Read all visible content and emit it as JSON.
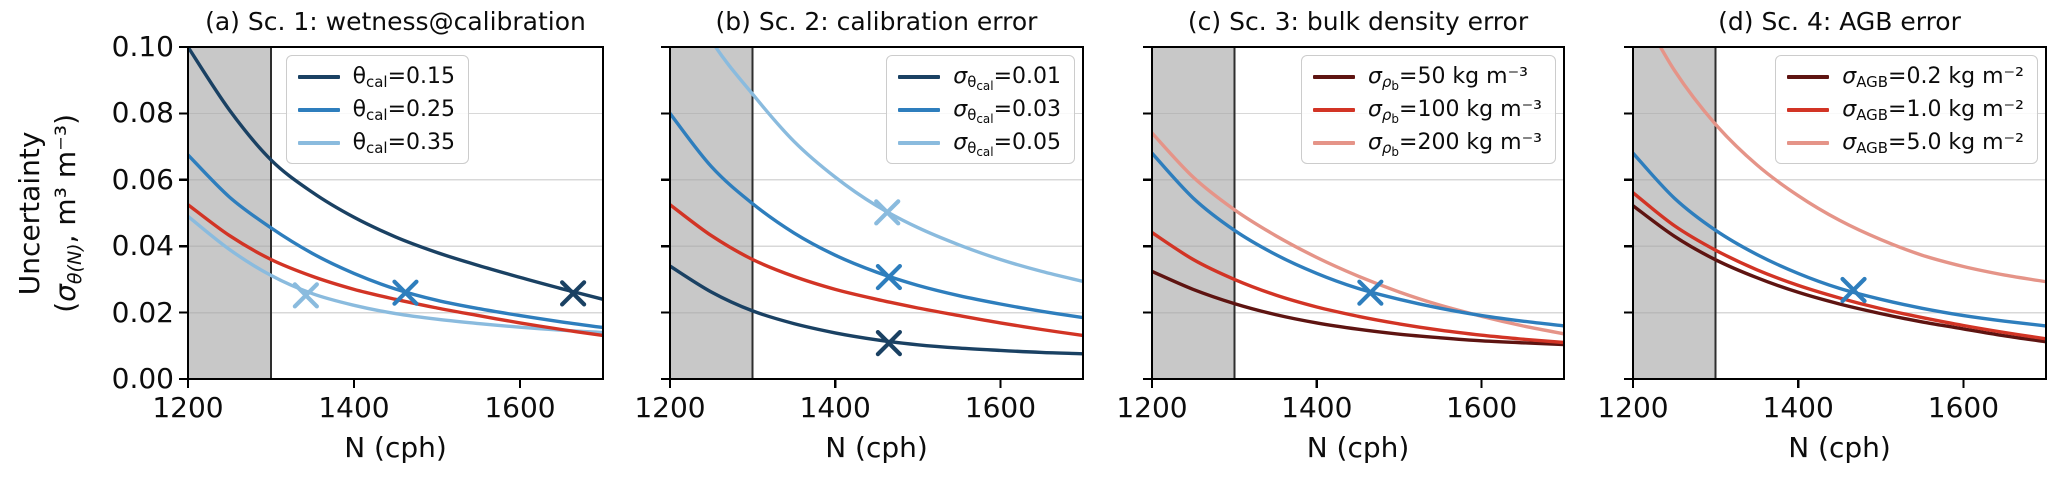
{
  "figure": {
    "background": "#ffffff"
  },
  "colors": {
    "grid": "#d8d8d8",
    "shaded_band": "rgba(166,166,166,0.62)",
    "band_edge": "#2e2e2e",
    "spine": "#000000",
    "dark_blue": "#1a4163",
    "mid_blue": "#2e7ebd",
    "light_blue": "#8abbde",
    "red": "#d23425",
    "maroon": "#5e1411",
    "salmon": "#e59488"
  },
  "axis": {
    "xlabel": "N (cph)",
    "ylabel_line1": "Uncertainty",
    "ylabel_line2": {
      "pre": "(",
      "sym": "σ",
      "sub": "θ(N)",
      "rest": ", m³ m⁻³)"
    },
    "xlim": [
      1200,
      1700
    ],
    "ylim": [
      0,
      0.1
    ],
    "xticks": [
      1200,
      1400,
      1600
    ],
    "yticks": [
      "0.00",
      "0.02",
      "0.04",
      "0.06",
      "0.08",
      "0.10"
    ],
    "ytick_values": [
      0,
      0.02,
      0.04,
      0.06,
      0.08,
      0.1
    ],
    "grid_values": [
      0.02,
      0.04,
      0.06,
      0.08
    ],
    "shaded_region": [
      1200,
      1300
    ],
    "grid_on": true,
    "legend_position": "upper right"
  },
  "chart_data": [
    {
      "id": "a",
      "title": "(a) Sc. 1: wetness@calibration",
      "type": "line",
      "x": [
        1200,
        1250,
        1300,
        1350,
        1400,
        1450,
        1500,
        1550,
        1600,
        1650,
        1700
      ],
      "legend_right_offset": 134,
      "series": [
        {
          "name": "theta-cal-0.15",
          "color": "#1a4163",
          "in_legend": true,
          "label": {
            "sym": "θ",
            "italic": false,
            "sub": "cal",
            "sub_italic": false,
            "subsub": "",
            "rest": "=0.15"
          },
          "values": [
            0.1,
            0.081,
            0.066,
            0.0562,
            0.0487,
            0.0428,
            0.0381,
            0.0342,
            0.0306,
            0.0272,
            0.024
          ],
          "marker": {
            "x": 1664,
            "y": 0.0258
          }
        },
        {
          "name": "theta-cal-0.25",
          "color": "#2e7ebd",
          "in_legend": true,
          "label": {
            "sym": "θ",
            "italic": false,
            "sub": "cal",
            "sub_italic": false,
            "subsub": "",
            "rest": "=0.25"
          },
          "values": [
            0.0675,
            0.0548,
            0.0455,
            0.0378,
            0.0318,
            0.0271,
            0.0237,
            0.0212,
            0.0191,
            0.0172,
            0.0155
          ],
          "marker": {
            "x": 1462,
            "y": 0.026
          }
        },
        {
          "name": "theta-cal-0.35",
          "color": "#8abbde",
          "in_legend": true,
          "label": {
            "sym": "θ",
            "italic": false,
            "sub": "cal",
            "sub_italic": false,
            "subsub": "",
            "rest": "=0.35"
          },
          "values": [
            0.049,
            0.039,
            0.0312,
            0.0257,
            0.0222,
            0.0197,
            0.018,
            0.0167,
            0.0156,
            0.0147,
            0.014
          ],
          "marker": {
            "x": 1342,
            "y": 0.0252
          }
        },
        {
          "name": "default-reference-red",
          "color": "#d23425",
          "in_legend": false,
          "label": null,
          "values": [
            0.0525,
            0.0432,
            0.036,
            0.0309,
            0.027,
            0.024,
            0.0214,
            0.0191,
            0.0169,
            0.0149,
            0.0131
          ],
          "marker": null
        }
      ]
    },
    {
      "id": "b",
      "title": "(b) Sc. 2: calibration error",
      "type": "line",
      "x": [
        1200,
        1250,
        1300,
        1350,
        1400,
        1450,
        1500,
        1550,
        1600,
        1650,
        1700
      ],
      "legend_right_offset": 8,
      "series": [
        {
          "name": "sigma-theta-cal-0.01",
          "color": "#1a4163",
          "in_legend": true,
          "label": {
            "sym": "σ",
            "italic": true,
            "sub": "θ",
            "sub_italic": false,
            "subsub": "cal",
            "rest": "=0.01"
          },
          "values": [
            0.034,
            0.0262,
            0.0205,
            0.0167,
            0.0139,
            0.0118,
            0.0103,
            0.0093,
            0.0086,
            0.008,
            0.0076
          ],
          "marker": {
            "x": 1465,
            "y": 0.0108
          }
        },
        {
          "name": "sigma-theta-cal-0.03",
          "color": "#2e7ebd",
          "in_legend": true,
          "label": {
            "sym": "σ",
            "italic": true,
            "sub": "θ",
            "sub_italic": false,
            "subsub": "cal",
            "rest": "=0.03"
          },
          "values": [
            0.08,
            0.064,
            0.0528,
            0.044,
            0.0373,
            0.0322,
            0.0282,
            0.0251,
            0.0226,
            0.0204,
            0.0185
          ],
          "marker": {
            "x": 1465,
            "y": 0.0307
          }
        },
        {
          "name": "sigma-theta-cal-0.05",
          "color": "#8abbde",
          "in_legend": true,
          "label": {
            "sym": "σ",
            "italic": true,
            "sub": "θ",
            "sub_italic": false,
            "subsub": "cal",
            "rest": "=0.05"
          },
          "values": [
            0.125,
            0.102,
            0.0858,
            0.0716,
            0.0608,
            0.0522,
            0.0456,
            0.0404,
            0.036,
            0.0324,
            0.0294
          ],
          "marker": {
            "x": 1463,
            "y": 0.0502
          }
        },
        {
          "name": "default-reference-red",
          "color": "#d23425",
          "in_legend": false,
          "label": null,
          "values": [
            0.0525,
            0.0432,
            0.036,
            0.0309,
            0.027,
            0.024,
            0.0214,
            0.0191,
            0.0169,
            0.0149,
            0.0131
          ],
          "marker": null
        }
      ]
    },
    {
      "id": "c",
      "title": "(c) Sc. 3: bulk density error",
      "type": "line",
      "x": [
        1200,
        1250,
        1300,
        1350,
        1400,
        1450,
        1500,
        1550,
        1600,
        1650,
        1700
      ],
      "legend_right_offset": 8,
      "series": [
        {
          "name": "sigma-rho-b-50",
          "color": "#5e1411",
          "in_legend": true,
          "label": {
            "sym": "σ",
            "italic": true,
            "sub": "ρ",
            "sub_italic": true,
            "subsub": "b",
            "rest": "=50 kg m⁻³"
          },
          "values": [
            0.0324,
            0.027,
            0.0227,
            0.0194,
            0.0169,
            0.015,
            0.0135,
            0.0124,
            0.0115,
            0.0109,
            0.0104
          ],
          "marker": null
        },
        {
          "name": "sigma-rho-b-100",
          "color": "#d23425",
          "in_legend": true,
          "label": {
            "sym": "σ",
            "italic": true,
            "sub": "ρ",
            "sub_italic": true,
            "subsub": "b",
            "rest": "=100 kg m⁻³"
          },
          "values": [
            0.0441,
            0.036,
            0.03,
            0.0253,
            0.0217,
            0.0189,
            0.0166,
            0.0147,
            0.0132,
            0.012,
            0.011
          ],
          "marker": null
        },
        {
          "name": "sigma-rho-b-200",
          "color": "#e59488",
          "in_legend": true,
          "label": {
            "sym": "σ",
            "italic": true,
            "sub": "ρ",
            "sub_italic": true,
            "subsub": "b",
            "rest": "=200 kg m⁻³"
          },
          "values": [
            0.0741,
            0.0608,
            0.051,
            0.0432,
            0.0366,
            0.031,
            0.0262,
            0.0222,
            0.0189,
            0.016,
            0.0136
          ],
          "marker": null
        },
        {
          "name": "default-reference-blue",
          "color": "#2e7ebd",
          "in_legend": false,
          "label": null,
          "values": [
            0.068,
            0.0545,
            0.0448,
            0.0375,
            0.0318,
            0.0273,
            0.024,
            0.0213,
            0.0191,
            0.0174,
            0.016
          ],
          "marker": {
            "x": 1465,
            "y": 0.026
          }
        }
      ]
    },
    {
      "id": "d",
      "title": "(d) Sc. 4: AGB error",
      "type": "line",
      "x": [
        1200,
        1250,
        1300,
        1350,
        1400,
        1450,
        1500,
        1550,
        1600,
        1650,
        1700
      ],
      "legend_right_offset": 8,
      "series": [
        {
          "name": "sigma-agb-0.2",
          "color": "#5e1411",
          "in_legend": true,
          "label": {
            "sym": "σ",
            "italic": true,
            "sub": "AGB",
            "sub_italic": false,
            "subsub": "",
            "rest": "=0.2 kg m⁻²"
          },
          "values": [
            0.0522,
            0.043,
            0.0359,
            0.0305,
            0.0261,
            0.0226,
            0.0197,
            0.0172,
            0.0151,
            0.013,
            0.0112
          ],
          "marker": null
        },
        {
          "name": "sigma-agb-1.0",
          "color": "#d23425",
          "in_legend": true,
          "label": {
            "sym": "σ",
            "italic": true,
            "sub": "AGB",
            "sub_italic": false,
            "subsub": "",
            "rest": "=1.0 kg m⁻²"
          },
          "values": [
            0.0561,
            0.0462,
            0.0388,
            0.0329,
            0.0282,
            0.0244,
            0.0212,
            0.0185,
            0.0161,
            0.014,
            0.0121
          ],
          "marker": null
        },
        {
          "name": "sigma-agb-5.0",
          "color": "#e59488",
          "in_legend": true,
          "label": {
            "sym": "σ",
            "italic": true,
            "sub": "AGB",
            "sub_italic": false,
            "subsub": "",
            "rest": "=5.0 kg m⁻²"
          },
          "values": [
            0.115,
            0.093,
            0.0767,
            0.0645,
            0.0552,
            0.0478,
            0.042,
            0.0373,
            0.0339,
            0.0313,
            0.0293
          ],
          "marker": null
        },
        {
          "name": "default-reference-blue",
          "color": "#2e7ebd",
          "in_legend": false,
          "label": null,
          "values": [
            0.068,
            0.0545,
            0.0448,
            0.0375,
            0.0318,
            0.0273,
            0.024,
            0.0213,
            0.0191,
            0.0174,
            0.016
          ],
          "marker": {
            "x": 1467,
            "y": 0.0268
          }
        }
      ]
    }
  ]
}
